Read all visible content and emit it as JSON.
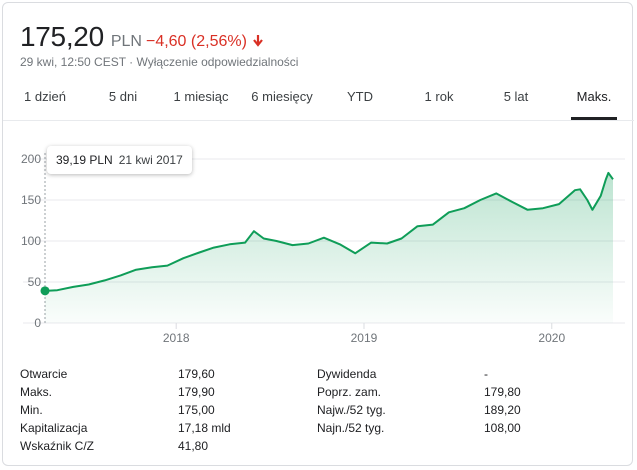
{
  "header": {
    "price": "175,20",
    "currency": "PLN",
    "change": "−4,60 (2,56%)",
    "subline": "29 kwi, 12:50 CEST · Wyłączenie odpowiedzialności"
  },
  "tabs": [
    "1 dzień",
    "5 dni",
    "1 miesiąc",
    "6 miesięcy",
    "YTD",
    "1 rok",
    "5 lat",
    "Maks."
  ],
  "active_tab": "Maks.",
  "tooltip": {
    "value": "39,19 PLN",
    "date": "21 kwi 2017"
  },
  "colors": {
    "line": "#0f9d58",
    "negative": "#d93025",
    "text": "#202124",
    "muted": "#70757a"
  },
  "chart_data": {
    "type": "area",
    "y_ticks": [
      "200",
      "150",
      "100",
      "50",
      "0"
    ],
    "x_ticks": [
      "2018",
      "2019",
      "2020"
    ],
    "ylim": [
      0,
      200
    ],
    "grid": true,
    "series": [
      {
        "x": [
          "2017-04-21",
          "2017-05-15",
          "2017-06-15",
          "2017-07-15",
          "2017-08-15",
          "2017-09-15",
          "2017-10-15",
          "2017-11-15",
          "2017-12-15",
          "2018-01-15",
          "2018-02-15",
          "2018-03-15",
          "2018-04-15",
          "2018-05-15",
          "2018-06-01",
          "2018-06-20",
          "2018-07-15",
          "2018-08-15",
          "2018-09-15",
          "2018-10-15",
          "2018-11-15",
          "2018-12-15",
          "2019-01-15",
          "2019-02-15",
          "2019-03-15",
          "2019-04-15",
          "2019-05-15",
          "2019-06-15",
          "2019-07-15",
          "2019-08-15",
          "2019-09-15",
          "2019-10-15",
          "2019-11-15",
          "2019-12-15",
          "2020-01-15",
          "2020-02-15",
          "2020-02-25",
          "2020-03-10",
          "2020-03-20",
          "2020-04-05",
          "2020-04-15",
          "2020-04-20",
          "2020-04-29"
        ],
        "values": [
          39.19,
          40,
          44,
          47,
          52,
          58,
          65,
          68,
          70,
          79,
          86,
          92,
          96,
          98,
          112,
          103,
          100,
          95,
          97,
          104,
          96,
          85,
          98,
          97,
          103,
          118,
          120,
          135,
          140,
          150,
          158,
          148,
          138,
          140,
          145,
          162,
          163,
          150,
          138,
          155,
          175,
          183,
          175.2
        ]
      }
    ]
  },
  "stats": {
    "left": [
      {
        "label": "Otwarcie",
        "value": "179,60"
      },
      {
        "label": "Maks.",
        "value": "179,90"
      },
      {
        "label": "Min.",
        "value": "175,00"
      },
      {
        "label": "Kapitalizacja",
        "value": "17,18 mld"
      },
      {
        "label": "Wskaźnik C/Z",
        "value": "41,80"
      }
    ],
    "right": [
      {
        "label": "Dywidenda",
        "value": "-"
      },
      {
        "label": "Poprz. zam.",
        "value": "179,80"
      },
      {
        "label": "Najw./52 tyg.",
        "value": "189,20"
      },
      {
        "label": "Najn./52 tyg.",
        "value": "108,00"
      }
    ]
  }
}
